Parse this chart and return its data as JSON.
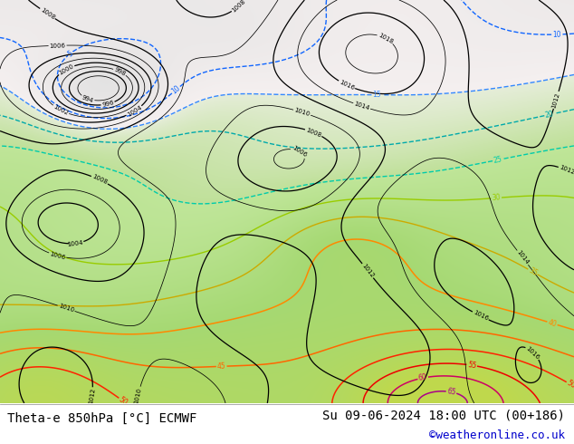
{
  "title_left": "Theta-e 850hPa [°C] ECMWF",
  "title_right": "Su 09-06-2024 18:00 UTC (00+186)",
  "credit": "©weatheronline.co.uk",
  "bg_color": "#ffffff",
  "fig_width": 6.34,
  "fig_height": 4.9,
  "dpi": 100,
  "title_fontsize": 10.0,
  "credit_fontsize": 9.0,
  "credit_color": "#0000cc"
}
